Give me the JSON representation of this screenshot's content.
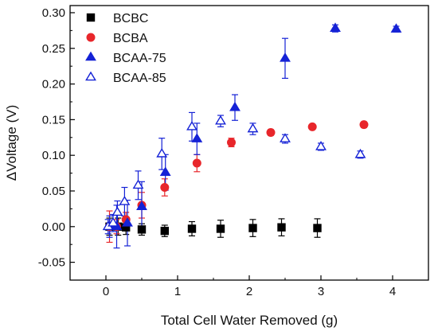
{
  "chart_data": {
    "type": "scatter",
    "xlabel": "Total Cell Water Removed (g)",
    "ylabel": "ΔVoltage (V)",
    "xlim": [
      -0.5,
      4.5
    ],
    "ylim": [
      -0.075,
      0.31
    ],
    "x_ticks": [
      0,
      1,
      2,
      3,
      4
    ],
    "y_ticks": [
      -0.05,
      0.0,
      0.05,
      0.1,
      0.15,
      0.2,
      0.25,
      0.3
    ],
    "y_tick_labels": [
      "-0.05",
      "0.00",
      "0.05",
      "0.10",
      "0.15",
      "0.20",
      "0.25",
      "0.30"
    ],
    "legend_position": "top-left",
    "series": [
      {
        "name": "BCBC",
        "marker": "square",
        "filled": true,
        "color": "#000000",
        "points": [
          {
            "x": 0.05,
            "y": 0.0,
            "err": 0.012
          },
          {
            "x": 0.17,
            "y": 0.0,
            "err": 0.012
          },
          {
            "x": 0.28,
            "y": -0.001,
            "err": 0.01
          },
          {
            "x": 0.5,
            "y": -0.004,
            "err": 0.008
          },
          {
            "x": 0.82,
            "y": -0.006,
            "err": 0.008
          },
          {
            "x": 1.2,
            "y": -0.003,
            "err": 0.01
          },
          {
            "x": 1.6,
            "y": -0.003,
            "err": 0.012
          },
          {
            "x": 2.05,
            "y": -0.002,
            "err": 0.012
          },
          {
            "x": 2.45,
            "y": -0.001,
            "err": 0.012
          },
          {
            "x": 2.95,
            "y": -0.002,
            "err": 0.013
          }
        ]
      },
      {
        "name": "BCBA",
        "marker": "circle",
        "filled": true,
        "color": "#e8262b",
        "points": [
          {
            "x": 0.05,
            "y": 0.0,
            "err": 0.022
          },
          {
            "x": 0.15,
            "y": 0.0,
            "err": 0.01
          },
          {
            "x": 0.28,
            "y": 0.01,
            "err": 0.01
          },
          {
            "x": 0.5,
            "y": 0.03,
            "err": 0.018
          },
          {
            "x": 0.82,
            "y": 0.055,
            "err": 0.012
          },
          {
            "x": 1.27,
            "y": 0.089,
            "err": 0.012
          },
          {
            "x": 1.75,
            "y": 0.118,
            "err": 0.006
          },
          {
            "x": 2.3,
            "y": 0.132,
            "err": 0.004
          },
          {
            "x": 2.88,
            "y": 0.14,
            "err": 0.003
          },
          {
            "x": 3.6,
            "y": 0.143,
            "err": 0.004
          }
        ]
      },
      {
        "name": "BCAA-75",
        "marker": "triangle",
        "filled": true,
        "color": "#1522d6",
        "points": [
          {
            "x": 0.05,
            "y": 0.0,
            "err": 0.015
          },
          {
            "x": 0.15,
            "y": 0.0,
            "err": 0.03
          },
          {
            "x": 0.3,
            "y": 0.005,
            "err": 0.032
          },
          {
            "x": 0.5,
            "y": 0.028,
            "err": 0.035
          },
          {
            "x": 0.83,
            "y": 0.076,
            "err": 0.025
          },
          {
            "x": 1.27,
            "y": 0.123,
            "err": 0.022
          },
          {
            "x": 1.8,
            "y": 0.167,
            "err": 0.018
          },
          {
            "x": 2.5,
            "y": 0.236,
            "err": 0.028
          },
          {
            "x": 3.2,
            "y": 0.278,
            "err": 0.005
          },
          {
            "x": 4.05,
            "y": 0.277,
            "err": 0.004
          }
        ]
      },
      {
        "name": "BCAA-85",
        "marker": "triangle",
        "filled": false,
        "color": "#1522d6",
        "points": [
          {
            "x": 0.03,
            "y": 0.0,
            "err": 0.01
          },
          {
            "x": 0.1,
            "y": 0.005,
            "err": 0.012
          },
          {
            "x": 0.16,
            "y": 0.02,
            "err": 0.016
          },
          {
            "x": 0.26,
            "y": 0.035,
            "err": 0.02
          },
          {
            "x": 0.45,
            "y": 0.058,
            "err": 0.02
          },
          {
            "x": 0.78,
            "y": 0.102,
            "err": 0.022
          },
          {
            "x": 1.2,
            "y": 0.14,
            "err": 0.02
          },
          {
            "x": 1.6,
            "y": 0.148,
            "err": 0.008
          },
          {
            "x": 2.05,
            "y": 0.137,
            "err": 0.008
          },
          {
            "x": 2.5,
            "y": 0.123,
            "err": 0.006
          },
          {
            "x": 3.0,
            "y": 0.112,
            "err": 0.005
          },
          {
            "x": 3.55,
            "y": 0.101,
            "err": 0.005
          }
        ]
      }
    ]
  }
}
